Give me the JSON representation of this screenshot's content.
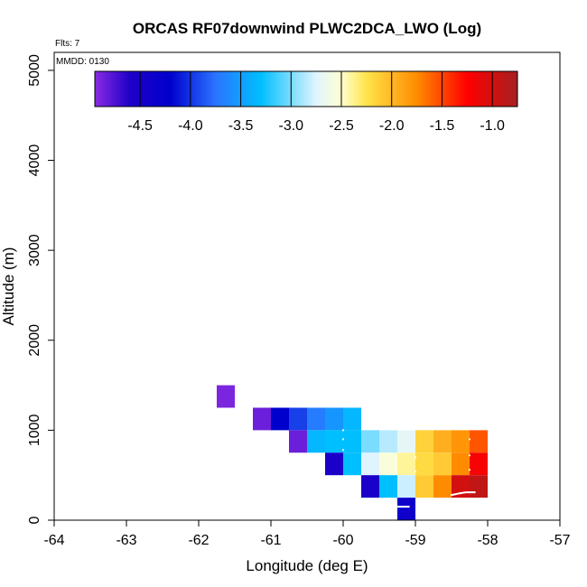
{
  "chart_data": {
    "type": "heatmap",
    "title": "ORCAS RF07downwind PLWC2DCA_LWO (Log)",
    "flights_note": "Flts: 7",
    "date_note": "MMDD: 0130",
    "xlabel": "Longitude (deg E)",
    "ylabel": "Altitude (m)",
    "xlim": [
      -64,
      -57
    ],
    "ylim": [
      0,
      5200
    ],
    "x_ticks": [
      -64,
      -63,
      -62,
      -61,
      -60,
      -59,
      -58,
      -57
    ],
    "y_ticks": [
      0,
      1000,
      2000,
      3000,
      4000,
      5000
    ],
    "cell_width_deg": 0.25,
    "cell_height_m": 250,
    "colorbar": {
      "range": [
        -4.95,
        -0.75
      ],
      "ticks": [
        -4.5,
        -4.0,
        -3.5,
        -3.0,
        -2.5,
        -2.0,
        -1.5,
        -1.0
      ],
      "tick_labels": [
        "-4.5",
        "-4.0",
        "-3.5",
        "-3.0",
        "-2.5",
        "-2.0",
        "-1.5",
        "-1.0"
      ],
      "stops": [
        {
          "v": -4.95,
          "c": "#8a2be2"
        },
        {
          "v": -4.6,
          "c": "#1e00c8"
        },
        {
          "v": -4.2,
          "c": "#0000cd"
        },
        {
          "v": -3.75,
          "c": "#2a74ff"
        },
        {
          "v": -3.3,
          "c": "#00bfff"
        },
        {
          "v": -2.75,
          "c": "#e0f4ff"
        },
        {
          "v": -2.5,
          "c": "#ffffd0"
        },
        {
          "v": -2.25,
          "c": "#ffe44a"
        },
        {
          "v": -1.75,
          "c": "#ff8c00"
        },
        {
          "v": -1.25,
          "c": "#ff0000"
        },
        {
          "v": -0.75,
          "c": "#a52020"
        }
      ]
    },
    "cells": [
      {
        "lon": -61.75,
        "alt": 1250,
        "value": -4.9
      },
      {
        "lon": -61.25,
        "alt": 1000,
        "value": -4.85
      },
      {
        "lon": -61.0,
        "alt": 1000,
        "value": -4.2
      },
      {
        "lon": -60.75,
        "alt": 1000,
        "value": -3.95
      },
      {
        "lon": -60.5,
        "alt": 1000,
        "value": -3.7
      },
      {
        "lon": -60.25,
        "alt": 1000,
        "value": -3.55
      },
      {
        "lon": -60.0,
        "alt": 1000,
        "value": -3.35
      },
      {
        "lon": -60.75,
        "alt": 750,
        "value": -4.85
      },
      {
        "lon": -60.5,
        "alt": 750,
        "value": -3.35
      },
      {
        "lon": -60.25,
        "alt": 750,
        "value": -3.3
      },
      {
        "lon": -60.0,
        "alt": 750,
        "value": -3.3
      },
      {
        "lon": -59.75,
        "alt": 750,
        "value": -3.0
      },
      {
        "lon": -59.5,
        "alt": 750,
        "value": -2.85
      },
      {
        "lon": -59.25,
        "alt": 750,
        "value": -2.7
      },
      {
        "lon": -59.0,
        "alt": 750,
        "value": -2.15
      },
      {
        "lon": -58.75,
        "alt": 750,
        "value": -1.95
      },
      {
        "lon": -58.5,
        "alt": 750,
        "value": -1.8
      },
      {
        "lon": -58.25,
        "alt": 750,
        "value": -1.55
      },
      {
        "lon": -60.25,
        "alt": 500,
        "value": -4.55
      },
      {
        "lon": -60.0,
        "alt": 500,
        "value": -3.3
      },
      {
        "lon": -59.75,
        "alt": 500,
        "value": -2.75
      },
      {
        "lon": -59.5,
        "alt": 500,
        "value": -2.55
      },
      {
        "lon": -59.25,
        "alt": 500,
        "value": -2.4
      },
      {
        "lon": -59.0,
        "alt": 500,
        "value": -2.2
      },
      {
        "lon": -58.75,
        "alt": 500,
        "value": -2.1
      },
      {
        "lon": -58.5,
        "alt": 500,
        "value": -1.75
      },
      {
        "lon": -58.25,
        "alt": 500,
        "value": -1.2
      },
      {
        "lon": -59.75,
        "alt": 250,
        "value": -4.55
      },
      {
        "lon": -59.5,
        "alt": 250,
        "value": -3.3
      },
      {
        "lon": -59.25,
        "alt": 250,
        "value": -2.8
      },
      {
        "lon": -59.0,
        "alt": 250,
        "value": -2.1
      },
      {
        "lon": -58.75,
        "alt": 250,
        "value": -1.75
      },
      {
        "lon": -58.5,
        "alt": 250,
        "value": -1.0
      },
      {
        "lon": -58.25,
        "alt": 250,
        "value": -0.9
      },
      {
        "lon": -59.25,
        "alt": 0,
        "value": -4.4
      }
    ],
    "flight_track": [
      [
        -60.0,
        1000
      ],
      [
        -60.0,
        900
      ],
      [
        -60.0,
        780
      ],
      [
        -59.0,
        700
      ],
      [
        -59.0,
        540
      ],
      [
        -58.25,
        900
      ],
      [
        -58.25,
        720
      ],
      [
        -58.25,
        560
      ],
      [
        -59.25,
        150
      ],
      [
        -59.1,
        150
      ],
      [
        -58.5,
        280
      ],
      [
        -58.38,
        300
      ],
      [
        -58.25,
        310
      ],
      [
        -58.18,
        310
      ]
    ]
  },
  "colors": {
    "axis": "#000000",
    "background": "#ffffff",
    "track": "#ffffff"
  }
}
